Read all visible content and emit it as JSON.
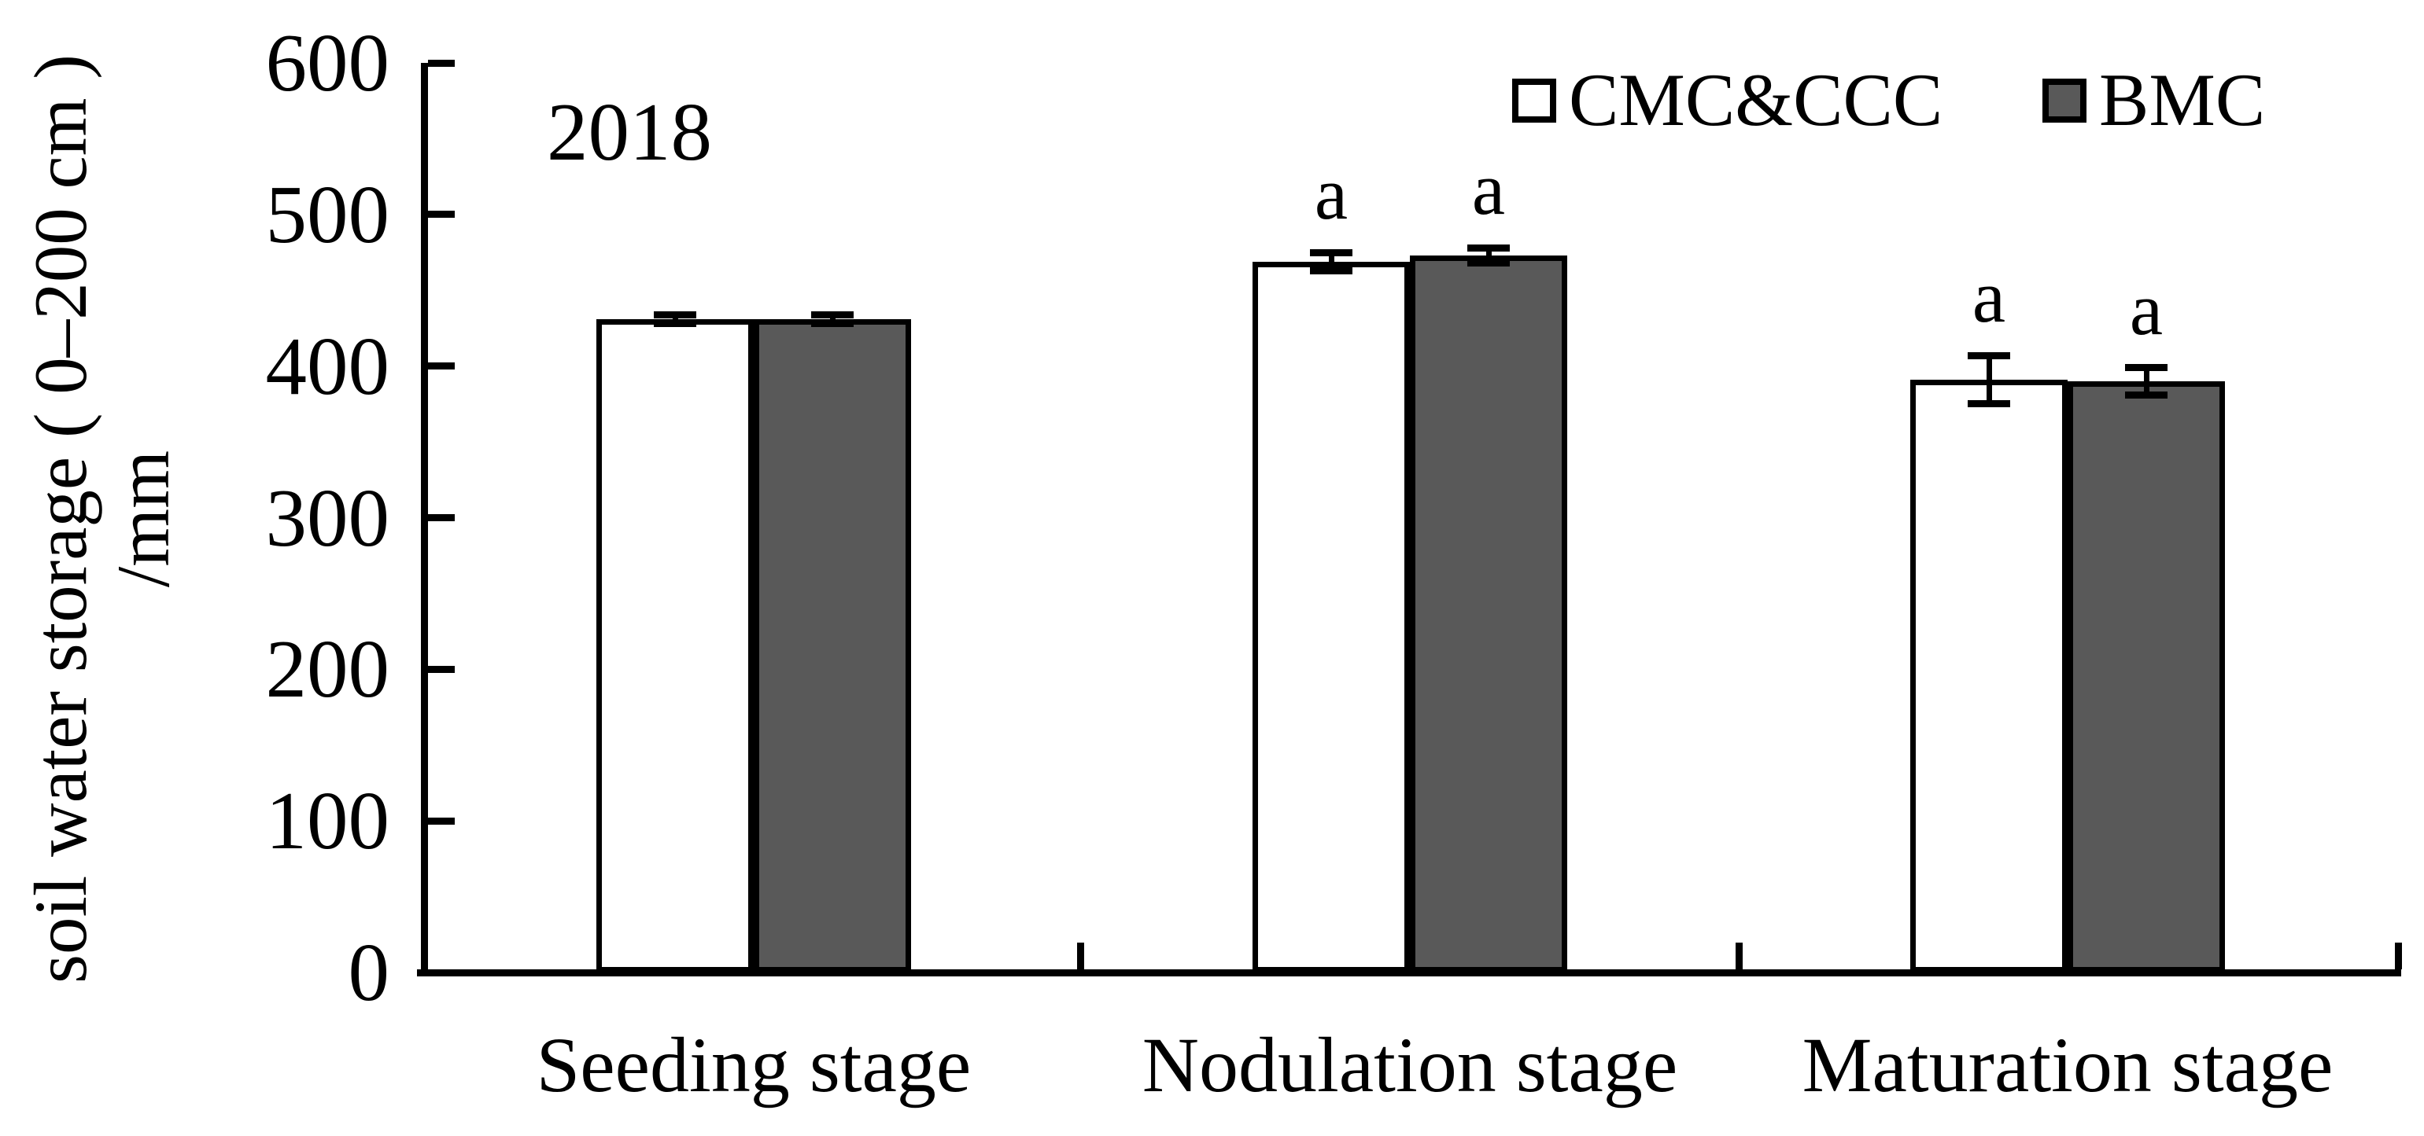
{
  "figure": {
    "year_label": "2018",
    "y_axis": {
      "title_line1": "soil water storage ( 0–200 cm )",
      "title_line2": "/mm"
    }
  },
  "chart_data": {
    "type": "bar",
    "title": "2018",
    "categories": [
      "Seeding stage",
      "Nodulation stage",
      "Maturation stage"
    ],
    "series": [
      {
        "name": "CMC&CCC",
        "fill": "#ffffff",
        "values": [
          431,
          469,
          391
        ],
        "errors": [
          3,
          6,
          16
        ],
        "sig_letters": [
          "",
          "a",
          "a"
        ]
      },
      {
        "name": "BMC",
        "fill": "#595959",
        "values": [
          431,
          473,
          390
        ],
        "errors": [
          3,
          5,
          9
        ],
        "sig_letters": [
          "",
          "a",
          "a"
        ]
      }
    ],
    "ylabel": "soil water storage ( 0–200 cm ) /mm",
    "xlabel": "",
    "ylim": [
      0,
      600
    ],
    "yticks": [
      0,
      100,
      200,
      300,
      400,
      500,
      600
    ],
    "grid": false,
    "legend_position": "top-right",
    "bar_border_color": "#000000",
    "axis_color": "#000000",
    "error_bar_color": "#000000"
  }
}
